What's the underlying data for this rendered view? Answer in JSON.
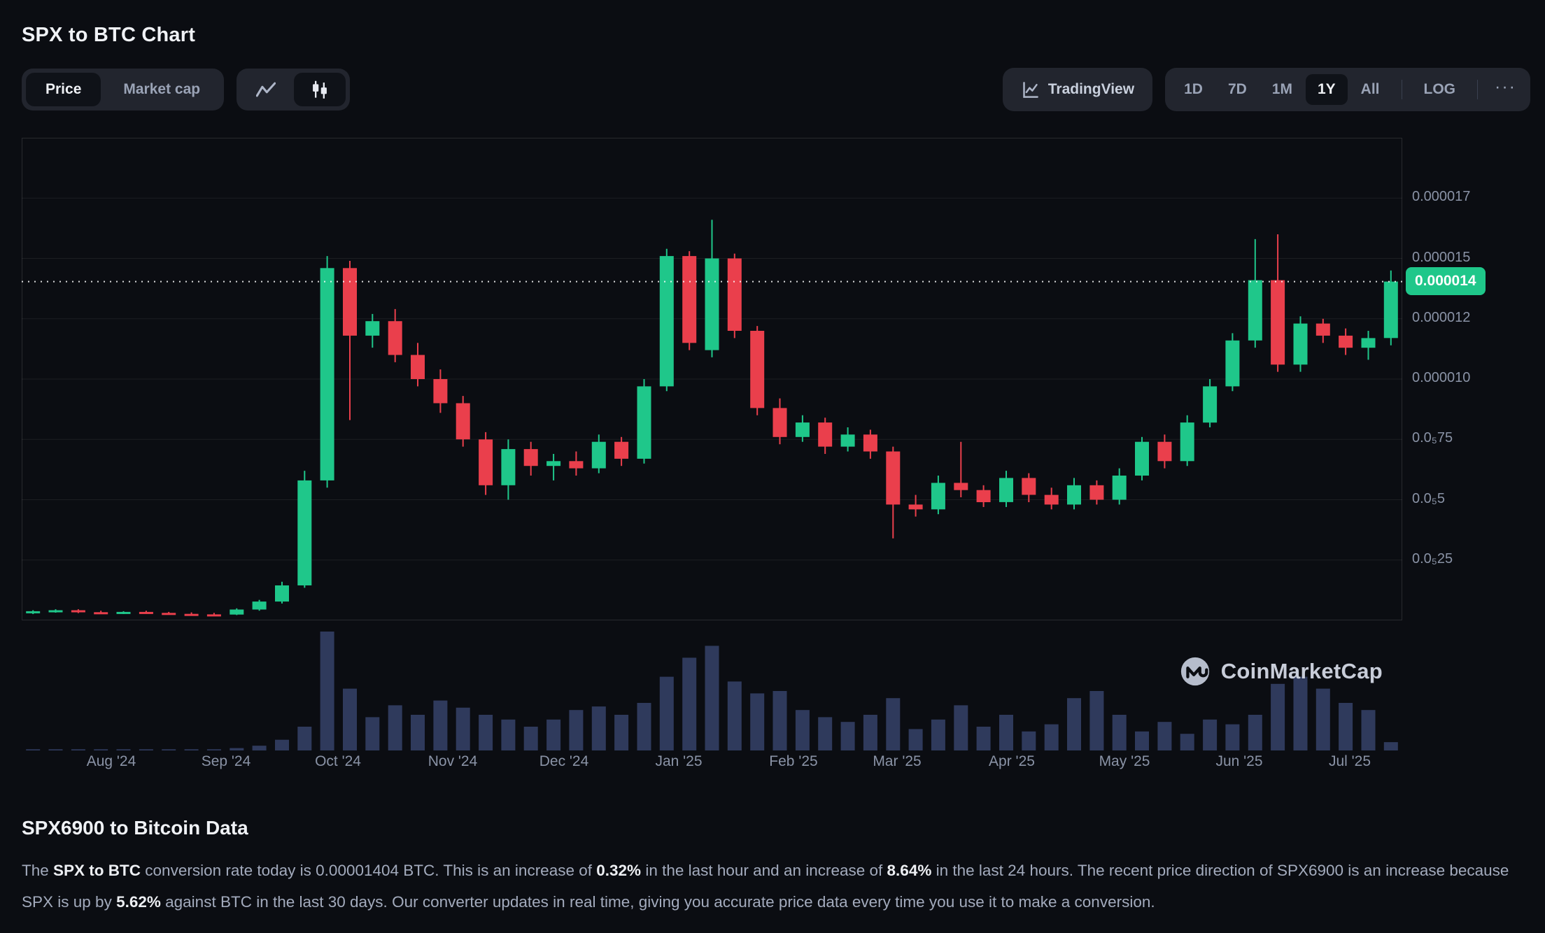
{
  "page": {
    "title": "SPX to BTC Chart"
  },
  "toolbar": {
    "price_label": "Price",
    "marketcap_label": "Market cap",
    "tradingview_label": "TradingView",
    "ranges": [
      "1D",
      "7D",
      "1M",
      "1Y",
      "All"
    ],
    "active_range": "1Y",
    "log_label": "LOG",
    "more_label": "···"
  },
  "chart": {
    "watermark_label": "CoinMarketCap"
  },
  "chart_data": {
    "type": "candlestick",
    "title": "SPX to BTC 1Y price chart with volume",
    "unit": "BTC x 1e-6",
    "y_axis": {
      "min": 0,
      "max": 20,
      "gridlines": [
        {
          "value": 17.5,
          "label": "0.000017"
        },
        {
          "value": 15,
          "label": "0.000015"
        },
        {
          "value": 12.5,
          "label": "0.000012"
        },
        {
          "value": 10,
          "label": "0.000010"
        },
        {
          "value": 7.5,
          "label": "0.0₅75"
        },
        {
          "value": 5,
          "label": "0.0₅5"
        },
        {
          "value": 2.5,
          "label": "0.0₅25"
        }
      ]
    },
    "current_price": {
      "value": 14.04,
      "label": "0.000014"
    },
    "x_axis": {
      "labels": [
        {
          "label": "Aug '24",
          "pos": 0.065
        },
        {
          "label": "Sep '24",
          "pos": 0.148
        },
        {
          "label": "Oct '24",
          "pos": 0.229
        },
        {
          "label": "Nov '24",
          "pos": 0.312
        },
        {
          "label": "Dec '24",
          "pos": 0.393
        },
        {
          "label": "Jan '25",
          "pos": 0.476
        },
        {
          "label": "Feb '25",
          "pos": 0.559
        },
        {
          "label": "Mar '25",
          "pos": 0.634
        },
        {
          "label": "Apr '25",
          "pos": 0.717
        },
        {
          "label": "May '25",
          "pos": 0.799
        },
        {
          "label": "Jun '25",
          "pos": 0.882
        },
        {
          "label": "Jul '25",
          "pos": 0.962
        }
      ]
    },
    "candles": [
      [
        0.3,
        0.42,
        0.26,
        0.38
      ],
      [
        0.38,
        0.46,
        0.32,
        0.42
      ],
      [
        0.42,
        0.46,
        0.3,
        0.34
      ],
      [
        0.34,
        0.4,
        0.26,
        0.3
      ],
      [
        0.3,
        0.38,
        0.26,
        0.35
      ],
      [
        0.35,
        0.4,
        0.28,
        0.31
      ],
      [
        0.31,
        0.35,
        0.24,
        0.27
      ],
      [
        0.27,
        0.33,
        0.22,
        0.25
      ],
      [
        0.25,
        0.31,
        0.2,
        0.24
      ],
      [
        0.24,
        0.5,
        0.22,
        0.45
      ],
      [
        0.45,
        0.85,
        0.4,
        0.78
      ],
      [
        0.78,
        1.6,
        0.7,
        1.45
      ],
      [
        1.45,
        6.2,
        1.35,
        5.8
      ],
      [
        5.8,
        15.1,
        5.5,
        14.6
      ],
      [
        14.6,
        14.9,
        8.3,
        11.8
      ],
      [
        11.8,
        12.7,
        11.3,
        12.4
      ],
      [
        12.4,
        12.9,
        10.7,
        11.0
      ],
      [
        11.0,
        11.5,
        9.7,
        10.0
      ],
      [
        10.0,
        10.4,
        8.6,
        9.0
      ],
      [
        9.0,
        9.3,
        7.2,
        7.5
      ],
      [
        7.5,
        7.8,
        5.2,
        5.6
      ],
      [
        5.6,
        7.5,
        5.0,
        7.1
      ],
      [
        7.1,
        7.4,
        6.0,
        6.4
      ],
      [
        6.4,
        6.9,
        5.8,
        6.6
      ],
      [
        6.6,
        7.0,
        6.0,
        6.3
      ],
      [
        6.3,
        7.7,
        6.1,
        7.4
      ],
      [
        7.4,
        7.6,
        6.4,
        6.7
      ],
      [
        6.7,
        10.0,
        6.5,
        9.7
      ],
      [
        9.7,
        15.4,
        9.5,
        15.1
      ],
      [
        15.1,
        15.3,
        11.2,
        11.5
      ],
      [
        11.2,
        16.6,
        10.9,
        15.0
      ],
      [
        15.0,
        15.2,
        11.7,
        12.0
      ],
      [
        12.0,
        12.2,
        8.5,
        8.8
      ],
      [
        8.8,
        9.2,
        7.3,
        7.6
      ],
      [
        7.6,
        8.5,
        7.4,
        8.2
      ],
      [
        8.2,
        8.4,
        6.9,
        7.2
      ],
      [
        7.2,
        8.0,
        7.0,
        7.7
      ],
      [
        7.7,
        7.9,
        6.7,
        7.0
      ],
      [
        7.0,
        7.2,
        3.4,
        4.8
      ],
      [
        4.8,
        5.2,
        4.3,
        4.6
      ],
      [
        4.6,
        6.0,
        4.4,
        5.7
      ],
      [
        5.7,
        7.4,
        5.1,
        5.4
      ],
      [
        5.4,
        5.6,
        4.7,
        4.9
      ],
      [
        4.9,
        6.2,
        4.7,
        5.9
      ],
      [
        5.9,
        6.1,
        4.9,
        5.2
      ],
      [
        5.2,
        5.5,
        4.6,
        4.8
      ],
      [
        4.8,
        5.9,
        4.6,
        5.6
      ],
      [
        5.6,
        5.8,
        4.8,
        5.0
      ],
      [
        5.0,
        6.3,
        4.8,
        6.0
      ],
      [
        6.0,
        7.6,
        5.8,
        7.4
      ],
      [
        7.4,
        7.7,
        6.3,
        6.6
      ],
      [
        6.6,
        8.5,
        6.4,
        8.2
      ],
      [
        8.2,
        10.0,
        8.0,
        9.7
      ],
      [
        9.7,
        11.9,
        9.5,
        11.6
      ],
      [
        11.6,
        15.8,
        11.3,
        14.1
      ],
      [
        14.1,
        16.0,
        10.3,
        10.6
      ],
      [
        10.6,
        12.6,
        10.3,
        12.3
      ],
      [
        12.3,
        12.5,
        11.5,
        11.8
      ],
      [
        11.8,
        12.1,
        11.0,
        11.3
      ],
      [
        11.3,
        12.0,
        10.8,
        11.7
      ],
      [
        11.7,
        14.5,
        11.4,
        14.04
      ]
    ],
    "volumes": [
      1,
      1,
      1,
      1,
      1,
      1,
      1,
      1,
      1,
      2,
      4,
      9,
      20,
      100,
      52,
      28,
      38,
      30,
      42,
      36,
      30,
      26,
      20,
      26,
      34,
      37,
      30,
      40,
      62,
      78,
      88,
      58,
      48,
      50,
      34,
      28,
      24,
      30,
      44,
      18,
      26,
      38,
      20,
      30,
      16,
      22,
      44,
      50,
      30,
      16,
      24,
      14,
      26,
      22,
      30,
      56,
      62,
      52,
      40,
      34,
      7
    ],
    "colors": {
      "up": "#1fc78a",
      "down": "#ea3f4c",
      "volume": "#2f3a5c",
      "grid": "rgba(255,255,255,0.07)",
      "border": "rgba(255,255,255,0.12)",
      "axis_text": "#8a93a6"
    }
  },
  "data_section": {
    "heading": "SPX6900 to Bitcoin Data",
    "paragraph": [
      {
        "text": "The ",
        "bold": false
      },
      {
        "text": "SPX to BTC",
        "bold": true
      },
      {
        "text": " conversion rate today is 0.00001404 BTC. This is an increase of ",
        "bold": false
      },
      {
        "text": "0.32%",
        "bold": true
      },
      {
        "text": " in the last hour and an increase of ",
        "bold": false
      },
      {
        "text": "8.64%",
        "bold": true
      },
      {
        "text": " in the last 24 hours. The recent price direction of SPX6900 is an increase because SPX is up by ",
        "bold": false
      },
      {
        "text": "5.62%",
        "bold": true
      },
      {
        "text": " against BTC in the last 30 days. Our converter updates in real time, giving you accurate price data every time you use it to make a conversion.",
        "bold": false
      }
    ]
  }
}
